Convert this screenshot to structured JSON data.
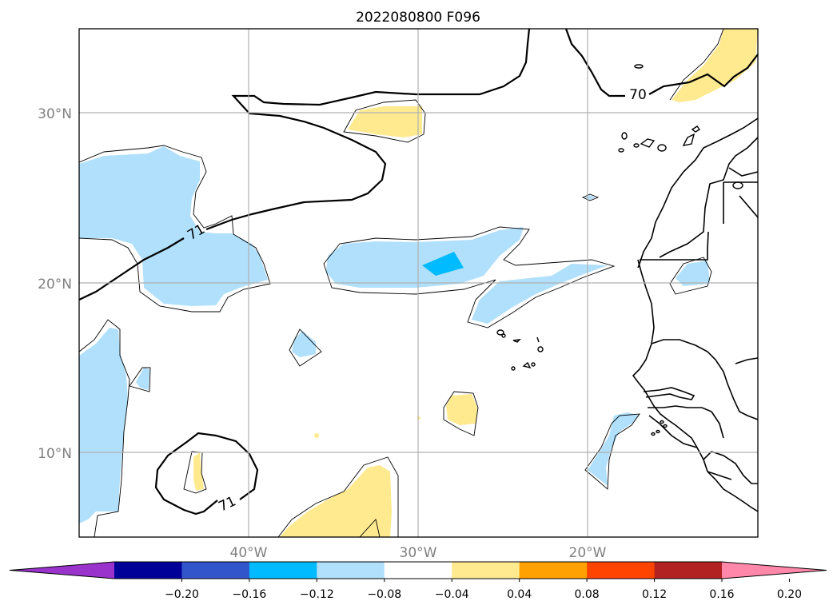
{
  "title": "2022080800 F096",
  "map": {
    "lat_ticks": [
      {
        "value": 30,
        "label": "30°N"
      },
      {
        "value": 20,
        "label": "20°N"
      },
      {
        "value": 10,
        "label": "10°N"
      }
    ],
    "lon_ticks": [
      {
        "value": -40,
        "label": "40°W"
      },
      {
        "value": -30,
        "label": "30°W"
      },
      {
        "value": -20,
        "label": "20°W"
      }
    ],
    "extent": {
      "lon_min": -50,
      "lon_max": -10,
      "lat_min": 5,
      "lat_max": 35
    },
    "contour_labels": [
      "70",
      "71",
      "71"
    ],
    "grid": true
  },
  "colorbar": {
    "colors": [
      "#9933cc",
      "#000099",
      "#3355cc",
      "#00bbff",
      "#b0e0fb",
      "#ffffff",
      "#ffea90",
      "#ffa100",
      "#ff4400",
      "#b22222",
      "#ff88aa"
    ],
    "ticks": [
      "−0.20",
      "−0.16",
      "−0.12",
      "−0.08",
      "−0.04",
      "0.04",
      "0.08",
      "0.12",
      "0.16",
      "0.20"
    ],
    "extend": "both"
  }
}
